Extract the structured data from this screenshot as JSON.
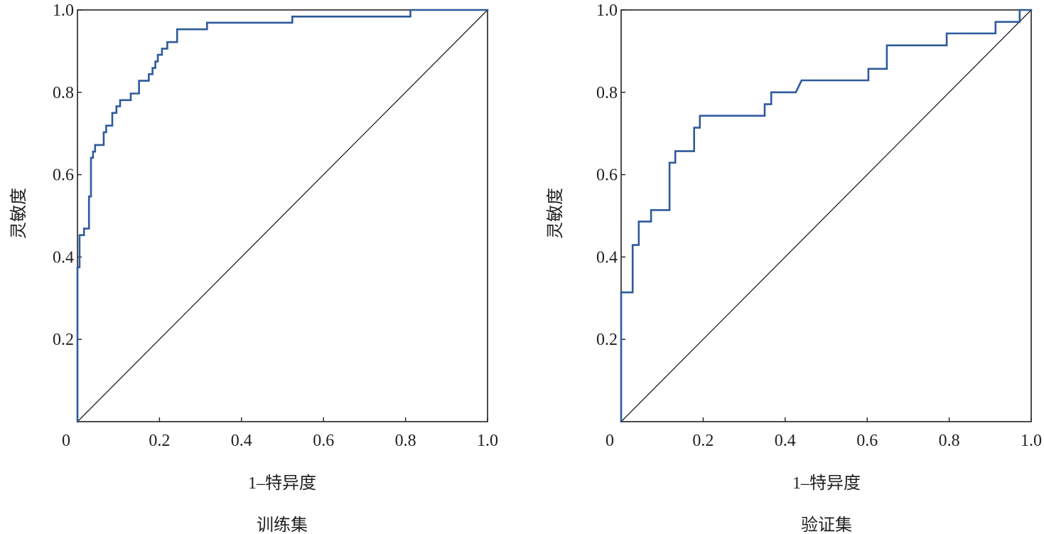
{
  "chart_data": [
    {
      "type": "line",
      "line_shape": "step",
      "caption": "训练集",
      "xlabel": "1–特异度",
      "ylabel": "灵敏度",
      "xlim": [
        0,
        1
      ],
      "ylim": [
        0,
        1
      ],
      "xticks": [
        0,
        0.2,
        0.4,
        0.6,
        0.8,
        1.0
      ],
      "xtick_labels": [
        "0",
        "0.2",
        "0.4",
        "0.6",
        "0.8",
        "1.0"
      ],
      "yticks": [
        0.2,
        0.4,
        0.6,
        0.8,
        1.0
      ],
      "ytick_labels": [
        "0.2",
        "0.4",
        "0.6",
        "0.8",
        "1.0"
      ],
      "grid": false,
      "legend": "none",
      "series": [
        {
          "color": "#2e5a9c",
          "x": [
            0,
            0,
            0.005,
            0.005,
            0.016,
            0.016,
            0.028,
            0.028,
            0.033,
            0.033,
            0.038,
            0.038,
            0.043,
            0.043,
            0.064,
            0.064,
            0.07,
            0.07,
            0.085,
            0.085,
            0.095,
            0.095,
            0.104,
            0.104,
            0.13,
            0.13,
            0.15,
            0.15,
            0.174,
            0.174,
            0.183,
            0.183,
            0.19,
            0.19,
            0.196,
            0.196,
            0.206,
            0.206,
            0.219,
            0.219,
            0.243,
            0.243,
            0.316,
            0.316,
            0.524,
            0.524,
            0.812,
            0.812,
            1.0
          ],
          "y": [
            0,
            0.375,
            0.375,
            0.453,
            0.453,
            0.469,
            0.469,
            0.547,
            0.547,
            0.641,
            0.641,
            0.656,
            0.656,
            0.672,
            0.672,
            0.703,
            0.703,
            0.719,
            0.719,
            0.75,
            0.75,
            0.766,
            0.766,
            0.781,
            0.781,
            0.797,
            0.797,
            0.828,
            0.828,
            0.844,
            0.844,
            0.859,
            0.859,
            0.875,
            0.875,
            0.891,
            0.891,
            0.906,
            0.906,
            0.922,
            0.922,
            0.953,
            0.953,
            0.969,
            0.969,
            0.984,
            0.984,
            1.0,
            1.0
          ]
        }
      ],
      "reference_line": {
        "x": [
          0,
          1
        ],
        "y": [
          0,
          1
        ],
        "color": "#231f20"
      }
    },
    {
      "type": "line",
      "line_shape": "step",
      "caption": "验证集",
      "xlabel": "1–特异度",
      "ylabel": "灵敏度",
      "xlim": [
        0,
        1
      ],
      "ylim": [
        0,
        1
      ],
      "xticks": [
        0,
        0.2,
        0.4,
        0.6,
        0.8,
        1.0
      ],
      "xtick_labels": [
        "0",
        "0.2",
        "0.4",
        "0.6",
        "0.8",
        "1.0"
      ],
      "yticks": [
        0.2,
        0.4,
        0.6,
        0.8,
        1.0
      ],
      "ytick_labels": [
        "0.2",
        "0.4",
        "0.6",
        "0.8",
        "1.0"
      ],
      "grid": false,
      "legend": "none",
      "series": [
        {
          "color": "#2e5a9c",
          "x": [
            0,
            0,
            0.028,
            0.028,
            0.043,
            0.043,
            0.073,
            0.073,
            0.118,
            0.118,
            0.132,
            0.132,
            0.178,
            0.178,
            0.192,
            0.192,
            0.35,
            0.35,
            0.366,
            0.366,
            0.426,
            0.44,
            0.603,
            0.603,
            0.648,
            0.648,
            0.794,
            0.794,
            0.913,
            0.913,
            0.972,
            0.972,
            1.0
          ],
          "y": [
            0,
            0.314,
            0.314,
            0.429,
            0.429,
            0.486,
            0.486,
            0.514,
            0.514,
            0.629,
            0.629,
            0.657,
            0.657,
            0.714,
            0.714,
            0.743,
            0.743,
            0.771,
            0.771,
            0.8,
            0.8,
            0.829,
            0.829,
            0.857,
            0.857,
            0.914,
            0.914,
            0.943,
            0.943,
            0.971,
            0.971,
            1.0,
            1.0
          ]
        }
      ],
      "reference_line": {
        "x": [
          0,
          1
        ],
        "y": [
          0,
          1
        ],
        "color": "#231f20"
      }
    }
  ]
}
